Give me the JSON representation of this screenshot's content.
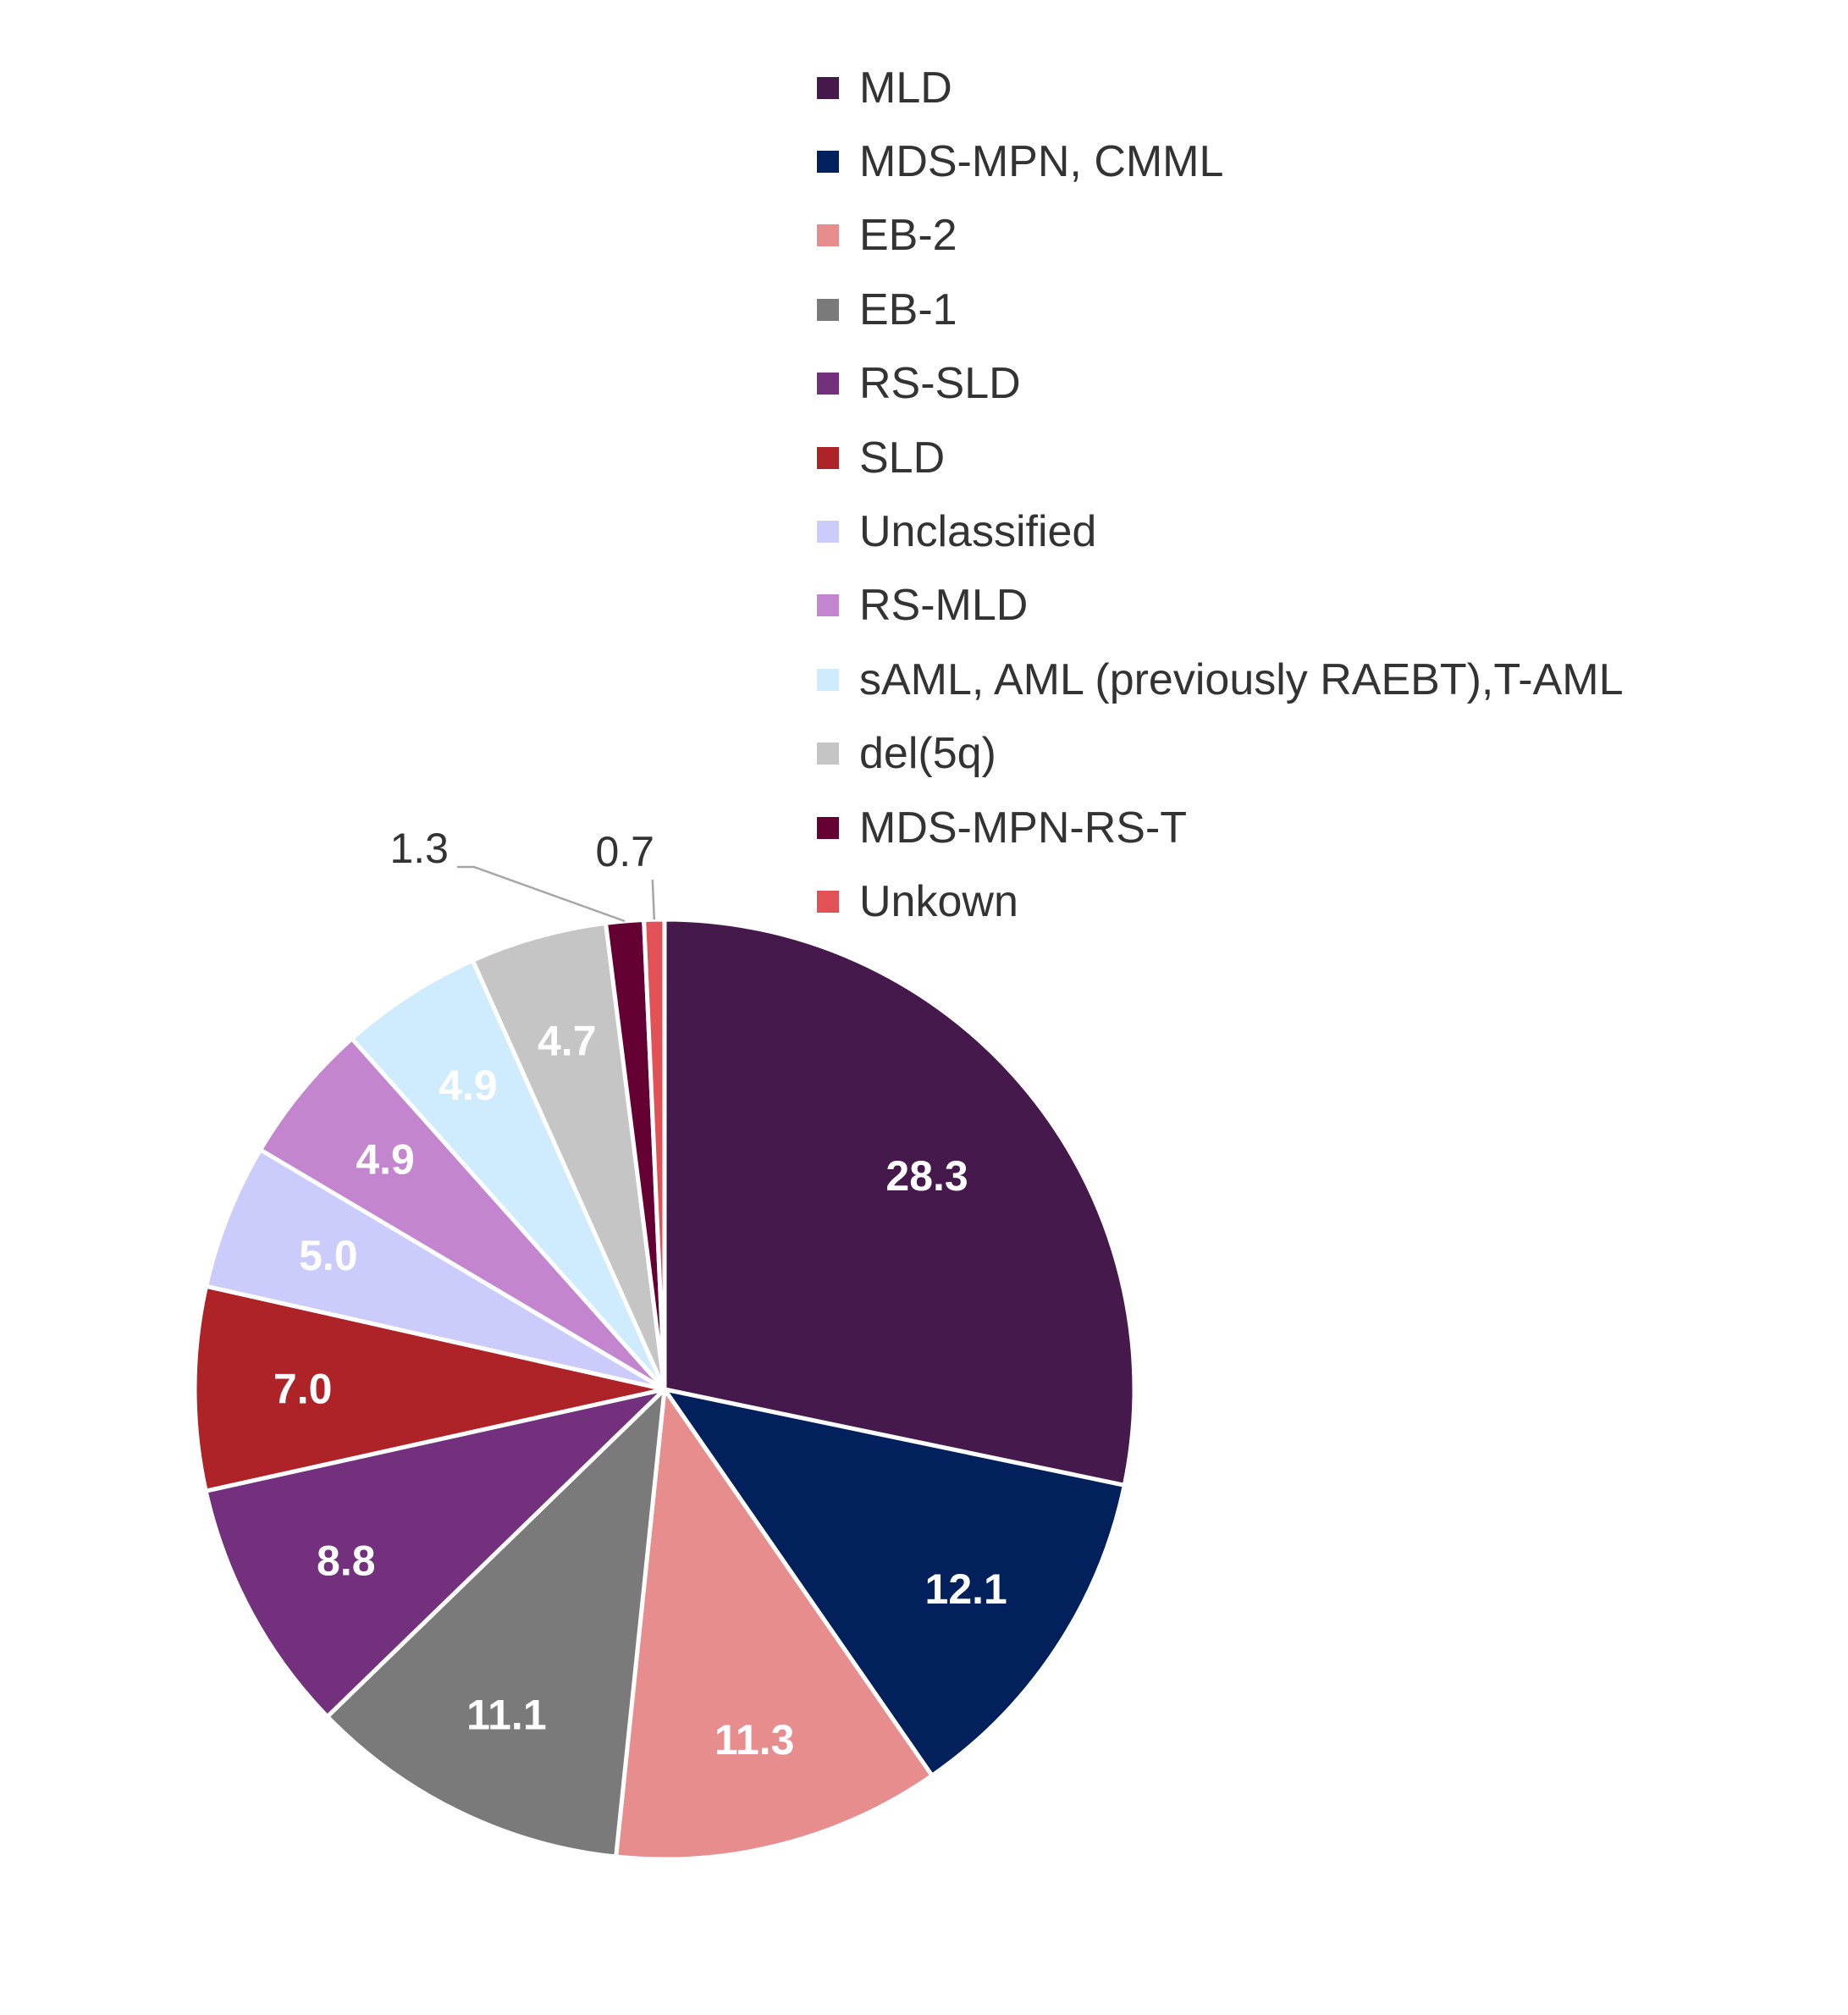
{
  "chart_data": {
    "type": "pie",
    "title": "",
    "legend_position": "top-right",
    "slices": [
      {
        "label": "MLD",
        "value": 28.3,
        "color": "#46194D"
      },
      {
        "label": "MDS-MPN, CMML",
        "value": 12.1,
        "color": "#02215C"
      },
      {
        "label": "EB-2",
        "value": 11.3,
        "color": "#E78D8E"
      },
      {
        "label": "EB-1",
        "value": 11.1,
        "color": "#7A7A7A"
      },
      {
        "label": "RS-SLD",
        "value": 8.8,
        "color": "#73307D"
      },
      {
        "label": "SLD",
        "value": 7.0,
        "color": "#AD2328"
      },
      {
        "label": "Unclassified",
        "value": 5.0,
        "color": "#CCCCFC"
      },
      {
        "label": "RS-MLD",
        "value": 4.9,
        "color": "#C385CE"
      },
      {
        "label": "sAML, AML (previously RAEBT),T-AML",
        "value": 4.9,
        "color": "#CFEBFE"
      },
      {
        "label": "del(5q)",
        "value": 4.7,
        "color": "#C5C5C5"
      },
      {
        "label": "MDS-MPN-RS-T",
        "value": 1.3,
        "color": "#650033"
      },
      {
        "label": "Unkown",
        "value": 0.7,
        "color": "#E25156"
      }
    ]
  }
}
